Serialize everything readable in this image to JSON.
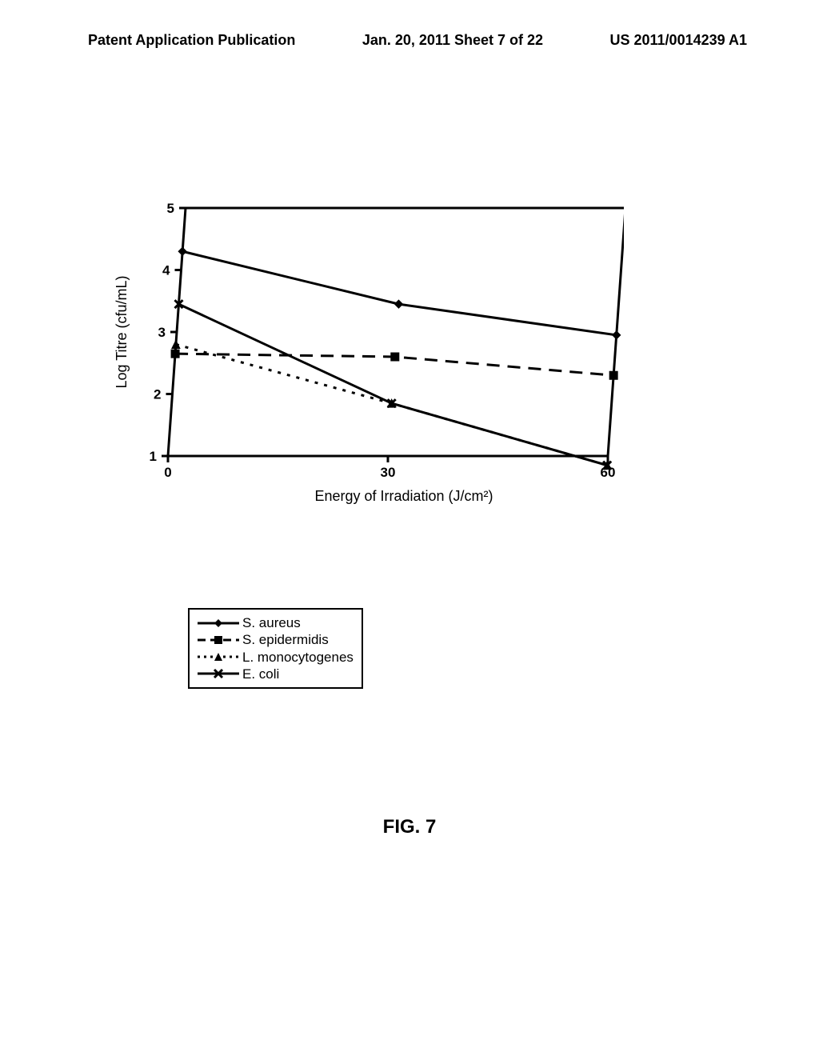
{
  "header": {
    "left": "Patent Application Publication",
    "middle": "Jan. 20, 2011  Sheet 7 of 22",
    "right": "US 2011/0014239 A1"
  },
  "caption": "FIG. 7",
  "chart": {
    "type": "line",
    "xlabel": "Energy of Irradiation (J/cm²)",
    "ylabel": "Log Titre (cfu/mL)",
    "xlim": [
      0,
      60
    ],
    "ylim": [
      1,
      5
    ],
    "xticks": [
      0,
      30,
      60
    ],
    "yticks": [
      1,
      2,
      3,
      4,
      5
    ],
    "label_fontsize": 18,
    "tick_fontsize": 17,
    "axis_linewidth": 3,
    "frame": true,
    "grid": false,
    "background_color": "#ffffff",
    "line_color": "#000000",
    "series": [
      {
        "name": "S. aureus",
        "marker": "diamond",
        "dash": "solid",
        "line_width": 3,
        "marker_size": 10,
        "x": [
          0,
          30,
          60
        ],
        "y": [
          4.3,
          3.45,
          2.95
        ]
      },
      {
        "name": "S. epidermidis",
        "marker": "square",
        "dash": "dashed",
        "line_width": 3,
        "marker_size": 10,
        "x": [
          0,
          30,
          60
        ],
        "y": [
          2.65,
          2.6,
          2.3
        ]
      },
      {
        "name": "L. monocytogenes",
        "marker": "triangle",
        "dash": "dotted",
        "line_width": 3,
        "marker_size": 10,
        "x": [
          0,
          30,
          60
        ],
        "y": [
          2.8,
          1.85,
          0.85
        ]
      },
      {
        "name": "E. coli",
        "marker": "x",
        "dash": "solid",
        "line_width": 3,
        "marker_size": 10,
        "x": [
          0,
          30,
          60
        ],
        "y": [
          3.45,
          1.85,
          0.85
        ]
      }
    ]
  },
  "legend": {
    "items": [
      {
        "label": "S. aureus",
        "series": 0
      },
      {
        "label": "S. epidermidis",
        "series": 1
      },
      {
        "label": "L. monocytogenes",
        "series": 2
      },
      {
        "label": "E. coli",
        "series": 3
      }
    ]
  }
}
